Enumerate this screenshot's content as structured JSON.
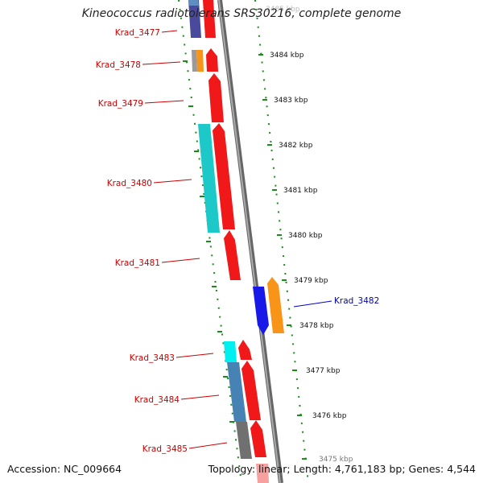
{
  "title": "Kineococcus radiotolerans SRS30216, complete genome",
  "footer": {
    "accession": "Accession: NC_009664",
    "summary": "Topology: linear; Length: 4,761,183 bp; Genes: 4,544"
  },
  "colors": {
    "red": "#f01818",
    "cyan": "#1cc8c8",
    "blue": "#1818e8",
    "orange": "#f89418",
    "steel": "#4682b4",
    "gray": "#707070",
    "indigo": "#4a4a9c",
    "tick_green": "#1a8c1a",
    "label_red": "#cc0000",
    "label_blue": "#0000bb",
    "spine": "#888888"
  },
  "ruler_labels": [
    "3485 kbp",
    "3484 kbp",
    "3483 kbp",
    "3482 kbp",
    "3481 kbp",
    "3480 kbp",
    "3479 kbp",
    "3478 kbp",
    "3477 kbp",
    "3476 kbp",
    "3475 kbp"
  ],
  "gene_labels": [
    "Krad_3477",
    "Krad_3478",
    "Krad_3479",
    "Krad_3480",
    "Krad_3481",
    "Krad_3482",
    "Krad_3483",
    "Krad_3484",
    "Krad_3485"
  ]
}
